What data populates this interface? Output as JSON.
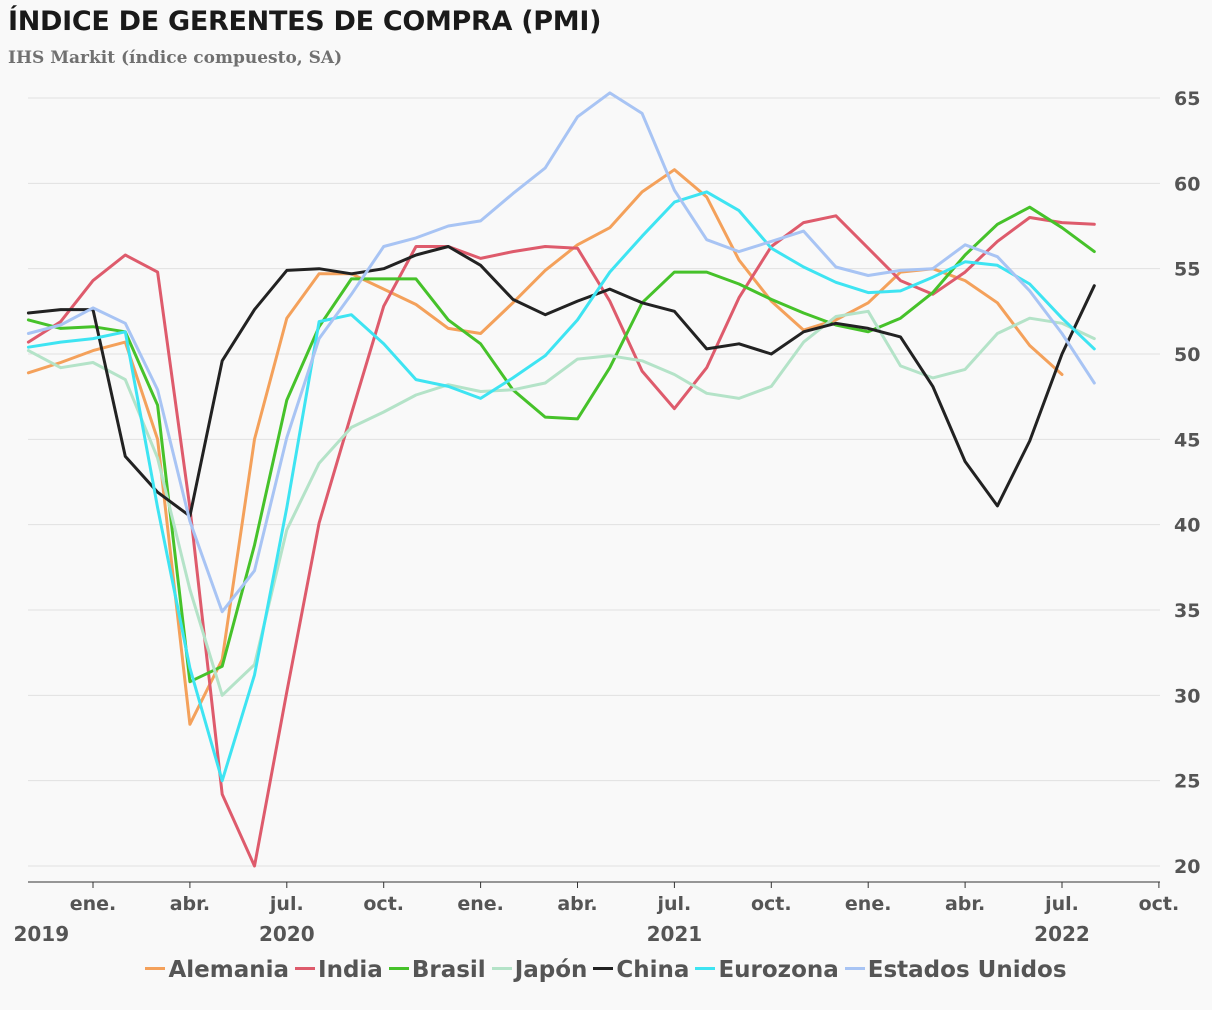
{
  "chart_data": {
    "type": "line",
    "title": "ÍNDICE DE GERENTES DE COMPRA (PMI)",
    "subtitle": "IHS Markit (índice compuesto, SA)",
    "xlabel": "",
    "ylabel": "",
    "ylim": [
      20,
      65
    ],
    "y_ticks": [
      20,
      25,
      30,
      35,
      40,
      45,
      50,
      55,
      60,
      65
    ],
    "y_axis_side": "right",
    "grid": true,
    "legend_position": "bottom",
    "x_ticks": [
      {
        "label": "ene.",
        "month_index": 0
      },
      {
        "label": "abr.",
        "month_index": 3
      },
      {
        "label": "jul.",
        "month_index": 6
      },
      {
        "label": "oct.",
        "month_index": 9
      },
      {
        "label": "ene.",
        "month_index": 12
      },
      {
        "label": "abr.",
        "month_index": 15
      },
      {
        "label": "jul.",
        "month_index": 18
      },
      {
        "label": "oct.",
        "month_index": 21
      },
      {
        "label": "ene.",
        "month_index": 24
      },
      {
        "label": "abr.",
        "month_index": 27
      },
      {
        "label": "jul.",
        "month_index": 30
      },
      {
        "label": "oct.",
        "month_index": 33
      }
    ],
    "year_labels": [
      {
        "label": "2019",
        "month_index": -1.6
      },
      {
        "label": "2020",
        "month_index": 6
      },
      {
        "label": "2021",
        "month_index": 18
      },
      {
        "label": "2022",
        "month_index": 30
      }
    ],
    "x": [
      "nov. 2019",
      "dic. 2019",
      "ene. 2020",
      "feb. 2020",
      "mar. 2020",
      "abr. 2020",
      "may. 2020",
      "jun. 2020",
      "jul. 2020",
      "ago. 2020",
      "sep. 2020",
      "oct. 2020",
      "nov. 2020",
      "dic. 2020",
      "ene. 2021",
      "feb. 2021",
      "mar. 2021",
      "abr. 2021",
      "may. 2021",
      "jun. 2021",
      "jul. 2021",
      "ago. 2021",
      "sep. 2021",
      "oct. 2021",
      "nov. 2021",
      "dic. 2021",
      "ene. 2022",
      "feb. 2022",
      "mar. 2022",
      "abr. 2022",
      "may. 2022",
      "jun. 2022",
      "jul. 2022",
      "ago. 2022",
      "sep. 2022"
    ],
    "x_month_index": [
      -2,
      -1,
      0,
      1,
      2,
      3,
      4,
      5,
      6,
      7,
      8,
      9,
      10,
      11,
      12,
      13,
      14,
      15,
      16,
      17,
      18,
      19,
      20,
      21,
      22,
      23,
      24,
      25,
      26,
      27,
      28,
      29,
      30,
      31,
      32
    ],
    "series": [
      {
        "name": "Alemania",
        "color": "#f4a15b",
        "values": [
          48.9,
          49.5,
          50.2,
          50.7,
          45.0,
          28.3,
          32.1,
          45.0,
          52.1,
          54.7,
          54.7,
          53.8,
          52.9,
          51.5,
          51.2,
          53.0,
          54.9,
          56.4,
          57.4,
          59.5,
          60.8,
          59.2,
          55.5,
          53.1,
          51.4,
          52.0,
          53.0,
          54.8,
          55.0,
          54.3,
          53.0,
          50.5,
          48.8,
          null,
          null
        ]
      },
      {
        "name": "India",
        "color": "#de5b6c",
        "values": [
          50.7,
          51.9,
          54.3,
          55.8,
          54.8,
          41.0,
          24.2,
          20.0,
          30.2,
          40.1,
          46.5,
          52.8,
          56.3,
          56.3,
          55.6,
          56.0,
          56.3,
          56.2,
          53.1,
          49.0,
          46.8,
          49.2,
          53.3,
          56.3,
          57.7,
          58.1,
          56.2,
          54.3,
          53.5,
          54.8,
          56.6,
          58.0,
          57.7,
          57.6,
          null
        ]
      },
      {
        "name": "Brasil",
        "color": "#46c22a",
        "values": [
          52.0,
          51.5,
          51.6,
          51.3,
          47.0,
          30.8,
          31.7,
          38.8,
          47.3,
          51.6,
          54.4,
          54.4,
          54.4,
          52.0,
          50.6,
          47.9,
          46.3,
          46.2,
          49.2,
          53.0,
          54.8,
          54.8,
          54.1,
          53.2,
          52.4,
          51.7,
          51.3,
          52.1,
          53.6,
          55.8,
          57.6,
          58.6,
          57.4,
          56.0,
          null
        ]
      },
      {
        "name": "Japón",
        "color": "#b4e3c8",
        "values": [
          50.2,
          49.2,
          49.5,
          48.5,
          43.9,
          36.2,
          30.0,
          31.8,
          39.7,
          43.6,
          45.7,
          46.6,
          47.6,
          48.2,
          47.8,
          47.9,
          48.3,
          49.7,
          49.9,
          49.6,
          48.8,
          47.7,
          47.4,
          48.1,
          50.7,
          52.2,
          52.5,
          49.3,
          48.6,
          49.1,
          51.2,
          52.1,
          51.8,
          50.9,
          null
        ]
      },
      {
        "name": "China",
        "color": "#222222",
        "values": [
          52.4,
          52.6,
          52.6,
          44.0,
          41.9,
          40.5,
          49.6,
          52.6,
          54.9,
          55.0,
          54.7,
          55.0,
          55.8,
          56.3,
          55.2,
          53.2,
          52.3,
          53.1,
          53.8,
          53.0,
          52.5,
          50.3,
          50.6,
          50.0,
          51.3,
          51.8,
          51.5,
          51.0,
          48.1,
          43.7,
          41.1,
          44.9,
          50.0,
          54.0,
          null
        ]
      },
      {
        "name": "Eurozona",
        "color": "#3ee4f2",
        "values": [
          50.4,
          50.7,
          50.9,
          51.3,
          41.0,
          31.6,
          25.0,
          31.2,
          41.0,
          51.9,
          52.3,
          50.6,
          48.5,
          48.1,
          47.4,
          48.6,
          49.9,
          52.0,
          54.8,
          56.9,
          58.9,
          59.5,
          58.4,
          56.2,
          55.1,
          54.2,
          53.6,
          53.7,
          54.5,
          55.4,
          55.2,
          54.1,
          52.1,
          50.3,
          null
        ]
      },
      {
        "name": "Estados Unidos",
        "color": "#a8c4f4",
        "values": [
          51.2,
          51.7,
          52.7,
          51.8,
          47.9,
          40.2,
          34.9,
          37.3,
          45.1,
          50.9,
          53.5,
          56.3,
          56.8,
          57.5,
          57.8,
          59.4,
          60.9,
          63.9,
          65.3,
          64.1,
          59.6,
          56.7,
          56.0,
          56.6,
          57.2,
          55.1,
          54.6,
          54.9,
          55.0,
          56.4,
          55.7,
          53.7,
          51.2,
          48.3,
          null
        ]
      }
    ]
  }
}
